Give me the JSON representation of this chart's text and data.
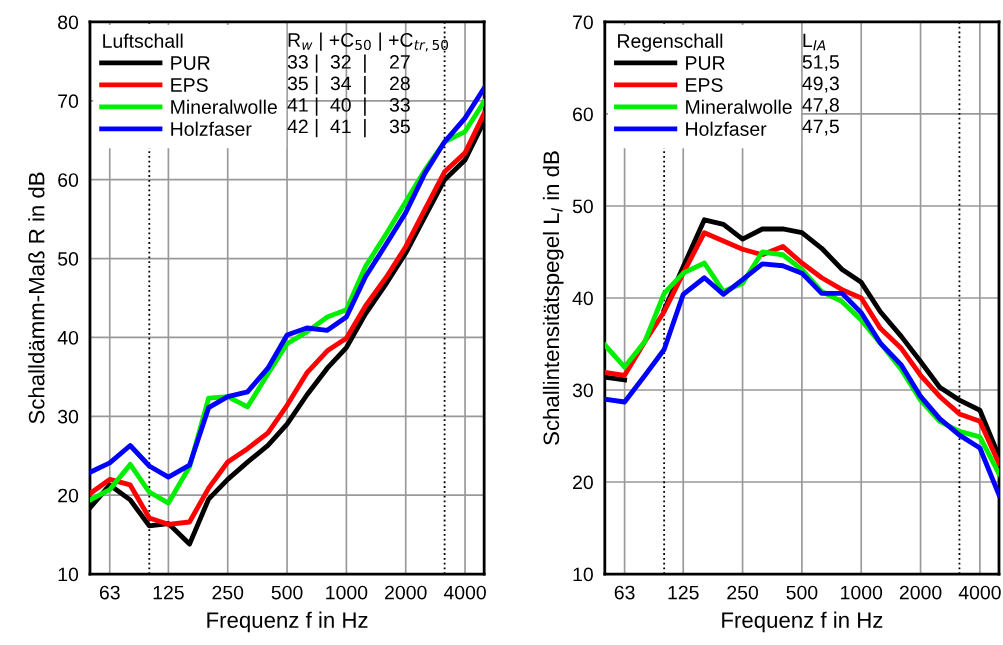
{
  "chart_data": [
    {
      "type": "line",
      "legend_title": "Luftschall",
      "ylabel": "Schalldämm-Maß R in dB",
      "xlabel": "Frequenz f in Hz",
      "log": "x",
      "x": [
        50,
        63,
        80,
        100,
        125,
        160,
        200,
        250,
        315,
        400,
        500,
        630,
        800,
        1000,
        1250,
        1600,
        2000,
        2500,
        3150,
        4000,
        5000
      ],
      "xlim": [
        50,
        5000
      ],
      "xticks": [
        63,
        125,
        250,
        500,
        1000,
        2000,
        4000
      ],
      "ylim": [
        10,
        80
      ],
      "yticks": [
        10,
        20,
        30,
        40,
        50,
        60,
        70,
        80
      ],
      "grid": true,
      "legend": "top left",
      "marker": "none",
      "line_style": "solid",
      "ref_lines": [
        {
          "axis": "x",
          "value": 100,
          "color": "#000000",
          "line_style": "dotted"
        },
        {
          "axis": "x",
          "value": 3150,
          "color": "#000000",
          "line_style": "dotted"
        }
      ],
      "annotations": [
        "R$_{w}$ | +C$_{50}$ | +C$_{tr,50}$",
        "33 |  32  |    27",
        "35 |  34  |    28",
        "41 |  40  |    33",
        "42 |  41  |    35"
      ],
      "series": [
        {
          "name": "PUR",
          "color": "#000000",
          "values": [
            18.4,
            21.3,
            19.4,
            16.1,
            16.4,
            13.8,
            19.5,
            22.0,
            24.2,
            26.3,
            29.0,
            32.7,
            36.1,
            38.7,
            43.0,
            46.9,
            50.7,
            55.3,
            60.0,
            62.5,
            67.4
          ]
        },
        {
          "name": "EPS",
          "color": "#ff0000",
          "values": [
            20.2,
            22.0,
            21.3,
            17.1,
            16.3,
            16.6,
            20.9,
            24.2,
            25.9,
            27.9,
            31.4,
            35.5,
            38.3,
            39.9,
            44.0,
            47.7,
            51.5,
            56.2,
            61.0,
            63.4,
            68.4
          ]
        },
        {
          "name": "Mineralwolle",
          "color": "#00ee00",
          "values": [
            19.4,
            20.7,
            23.9,
            20.4,
            19.0,
            23.6,
            32.3,
            32.5,
            31.2,
            35.4,
            39.2,
            40.7,
            42.6,
            43.5,
            49.0,
            53.2,
            57.2,
            61.2,
            64.8,
            66.1,
            69.9
          ]
        },
        {
          "name": "Holzfaser",
          "color": "#0000ff",
          "values": [
            22.9,
            24.1,
            26.3,
            23.7,
            22.3,
            23.8,
            31.1,
            32.5,
            33.1,
            36.1,
            40.3,
            41.2,
            40.9,
            42.6,
            47.7,
            51.9,
            55.8,
            60.8,
            64.8,
            67.8,
            71.6
          ]
        }
      ]
    },
    {
      "type": "line",
      "legend_title": "Regenschall",
      "ylabel": "Schallintensitätspegel L$_{I}$ in dB",
      "xlabel": "Frequenz f in Hz",
      "log": "x",
      "x": [
        50,
        63,
        80,
        100,
        125,
        160,
        200,
        250,
        315,
        400,
        500,
        630,
        800,
        1000,
        1250,
        1600,
        2000,
        2500,
        3150,
        4000,
        5000
      ],
      "xlim": [
        50,
        5000
      ],
      "xticks": [
        63,
        125,
        250,
        500,
        1000,
        2000,
        4000
      ],
      "ylim": [
        10,
        70
      ],
      "yticks": [
        10,
        20,
        30,
        40,
        50,
        60,
        70
      ],
      "grid": true,
      "legend": "top left",
      "marker": "none",
      "line_style": "solid",
      "ref_lines": [
        {
          "axis": "x",
          "value": 100,
          "color": "#000000",
          "line_style": "dotted"
        },
        {
          "axis": "x",
          "value": 3150,
          "color": "#000000",
          "line_style": "dotted"
        }
      ],
      "annotations": [
        "L$_{IA}$",
        "51,5",
        "49,3",
        "47,8",
        "47,5"
      ],
      "series": [
        {
          "name": "PUR",
          "color": "#000000",
          "values": [
            31.4,
            31.1,
            null,
            38.7,
            43.4,
            48.5,
            48.0,
            46.4,
            47.5,
            47.5,
            47.1,
            45.4,
            43.1,
            41.7,
            38.5,
            35.8,
            33.1,
            30.3,
            28.9,
            27.8,
            22.8
          ]
        },
        {
          "name": "EPS",
          "color": "#ff0000",
          "values": [
            31.9,
            31.6,
            35.3,
            38.5,
            42.7,
            47.1,
            46.2,
            45.3,
            44.7,
            45.6,
            43.8,
            42.2,
            40.9,
            40.0,
            36.7,
            34.5,
            31.6,
            29.3,
            27.4,
            26.6,
            22.0
          ]
        },
        {
          "name": "Mineralwolle",
          "color": "#00ee00",
          "values": [
            34.9,
            32.5,
            35.3,
            40.5,
            42.7,
            43.8,
            40.7,
            41.6,
            45.0,
            44.7,
            43.1,
            40.7,
            39.6,
            37.6,
            35.1,
            32.2,
            28.9,
            26.6,
            25.5,
            24.9,
            20.9
          ]
        },
        {
          "name": "Holzfaser",
          "color": "#0000ff",
          "values": [
            29.0,
            28.7,
            31.6,
            34.4,
            40.4,
            42.2,
            40.4,
            42.0,
            43.7,
            43.5,
            42.7,
            40.5,
            40.5,
            38.4,
            35.1,
            32.7,
            29.3,
            26.9,
            25.1,
            23.7,
            18.6
          ]
        }
      ]
    }
  ]
}
